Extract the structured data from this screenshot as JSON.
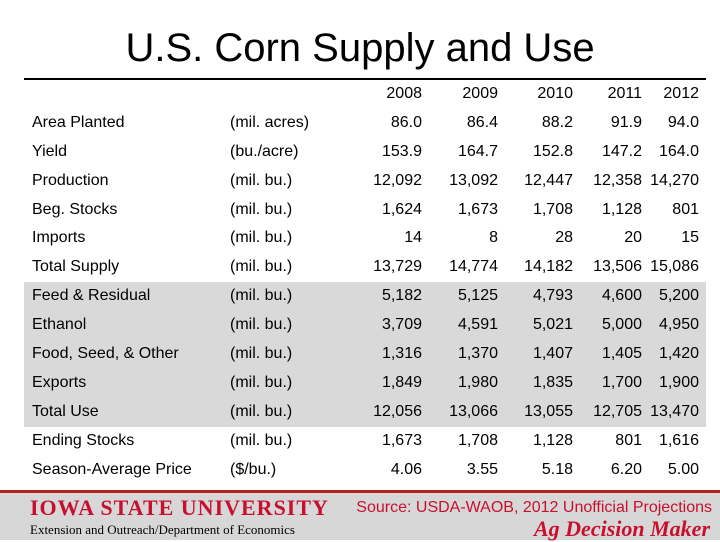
{
  "title": "U.S. Corn Supply and Use",
  "years": [
    "2008",
    "2009",
    "2010",
    "2011",
    "2012"
  ],
  "rows": [
    {
      "label": "Area Planted",
      "unit": "(mil. acres)",
      "values": [
        "86.0",
        "86.4",
        "88.2",
        "91.9",
        "94.0"
      ],
      "shaded": false
    },
    {
      "label": "Yield",
      "unit": "(bu./acre)",
      "values": [
        "153.9",
        "164.7",
        "152.8",
        "147.2",
        "164.0"
      ],
      "shaded": false
    },
    {
      "label": "Production",
      "unit": "(mil. bu.)",
      "values": [
        "12,092",
        "13,092",
        "12,447",
        "12,358",
        "14,270"
      ],
      "shaded": false
    },
    {
      "label": "Beg. Stocks",
      "unit": "(mil. bu.)",
      "values": [
        "1,624",
        "1,673",
        "1,708",
        "1,128",
        "801"
      ],
      "shaded": false
    },
    {
      "label": "Imports",
      "unit": "(mil. bu.)",
      "values": [
        "14",
        "8",
        "28",
        "20",
        "15"
      ],
      "shaded": false
    },
    {
      "label": "Total Supply",
      "unit": "(mil. bu.)",
      "values": [
        "13,729",
        "14,774",
        "14,182",
        "13,506",
        "15,086"
      ],
      "shaded": false
    },
    {
      "label": "Feed & Residual",
      "unit": "(mil. bu.)",
      "values": [
        "5,182",
        "5,125",
        "4,793",
        "4,600",
        "5,200"
      ],
      "shaded": true
    },
    {
      "label": "Ethanol",
      "unit": "(mil. bu.)",
      "values": [
        "3,709",
        "4,591",
        "5,021",
        "5,000",
        "4,950"
      ],
      "shaded": true
    },
    {
      "label": "Food, Seed, & Other",
      "unit": "(mil. bu.)",
      "values": [
        "1,316",
        "1,370",
        "1,407",
        "1,405",
        "1,420"
      ],
      "shaded": true
    },
    {
      "label": "Exports",
      "unit": "(mil. bu.)",
      "values": [
        "1,849",
        "1,980",
        "1,835",
        "1,700",
        "1,900"
      ],
      "shaded": true
    },
    {
      "label": "Total Use",
      "unit": "(mil. bu.)",
      "values": [
        "12,056",
        "13,066",
        "13,055",
        "12,705",
        "13,470"
      ],
      "shaded": true
    },
    {
      "label": "Ending Stocks",
      "unit": "(mil. bu.)",
      "values": [
        "1,673",
        "1,708",
        "1,128",
        "801",
        "1,616"
      ],
      "shaded": false
    },
    {
      "label": "Season-Average Price",
      "unit": "($/bu.)",
      "values": [
        "4.06",
        "3.55",
        "5.18",
        "6.20",
        "5.00"
      ],
      "shaded": false
    }
  ],
  "footer": {
    "university": "IOWA STATE UNIVERSITY",
    "department": "Extension and Outreach/Department of Economics",
    "source": "Source: USDA-WAOB, 2012 Unofficial Projections",
    "brand": "Ag Decision Maker"
  },
  "colors": {
    "accent": "#c8102e",
    "shade": "#d9d9d9",
    "footer_bg": "#d7d7d7"
  }
}
